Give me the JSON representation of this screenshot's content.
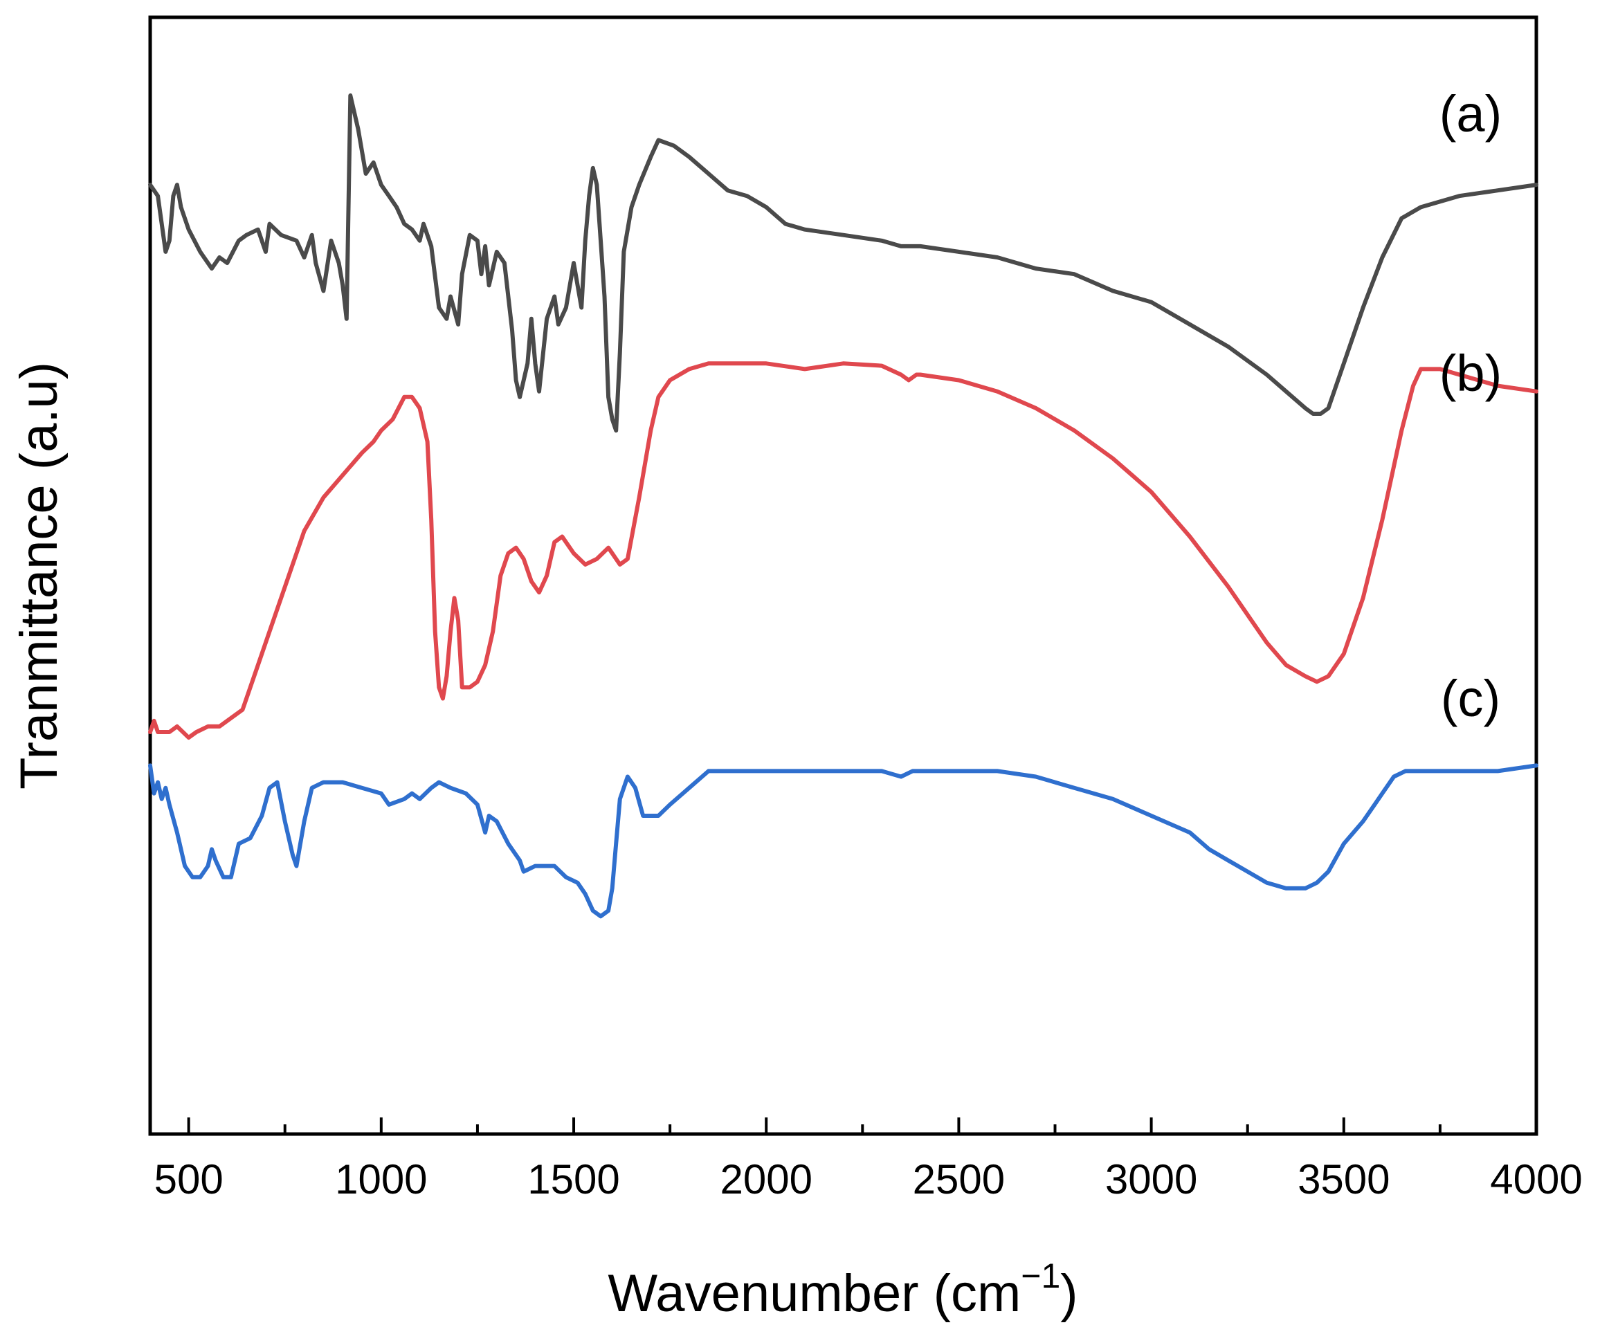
{
  "chart_data": {
    "type": "line",
    "title": "",
    "xlabel": "Wavenumber (cm",
    "xlabel_superscript": "−1",
    "xlabel_close": ")",
    "ylabel": "Tranmittance (a.u)",
    "xlim": [
      400,
      4000
    ],
    "ylim": [
      0,
      100
    ],
    "xticks": [
      500,
      1000,
      1500,
      2000,
      2500,
      3000,
      3500,
      4000
    ],
    "minor_tick_step": 250,
    "yticks_visible": false,
    "grid": false,
    "legend": "inline labels at right",
    "series": [
      {
        "name": "(a)",
        "color": "#4a4a4a",
        "points": [
          [
            400,
            85
          ],
          [
            420,
            84
          ],
          [
            440,
            79
          ],
          [
            450,
            80
          ],
          [
            460,
            84
          ],
          [
            470,
            85
          ],
          [
            480,
            83
          ],
          [
            500,
            81
          ],
          [
            530,
            79
          ],
          [
            560,
            77.5
          ],
          [
            580,
            78.5
          ],
          [
            600,
            78
          ],
          [
            630,
            80
          ],
          [
            650,
            80.5
          ],
          [
            680,
            81
          ],
          [
            700,
            79
          ],
          [
            710,
            81.5
          ],
          [
            740,
            80.5
          ],
          [
            780,
            80
          ],
          [
            800,
            78.5
          ],
          [
            820,
            80.5
          ],
          [
            830,
            78
          ],
          [
            850,
            75.5
          ],
          [
            870,
            80
          ],
          [
            890,
            78
          ],
          [
            900,
            76
          ],
          [
            910,
            73
          ],
          [
            920,
            93
          ],
          [
            940,
            90
          ],
          [
            960,
            86
          ],
          [
            980,
            87
          ],
          [
            1000,
            85
          ],
          [
            1020,
            84
          ],
          [
            1040,
            83
          ],
          [
            1060,
            81.5
          ],
          [
            1080,
            81
          ],
          [
            1100,
            80
          ],
          [
            1110,
            81.5
          ],
          [
            1130,
            79.5
          ],
          [
            1150,
            74
          ],
          [
            1170,
            73
          ],
          [
            1180,
            75
          ],
          [
            1200,
            72.5
          ],
          [
            1210,
            77
          ],
          [
            1230,
            80.5
          ],
          [
            1250,
            80
          ],
          [
            1260,
            77
          ],
          [
            1270,
            79.5
          ],
          [
            1280,
            76
          ],
          [
            1300,
            79
          ],
          [
            1320,
            78
          ],
          [
            1340,
            72
          ],
          [
            1350,
            67.5
          ],
          [
            1360,
            66
          ],
          [
            1380,
            69
          ],
          [
            1390,
            73
          ],
          [
            1400,
            69
          ],
          [
            1410,
            66.5
          ],
          [
            1430,
            73
          ],
          [
            1450,
            75
          ],
          [
            1460,
            72.5
          ],
          [
            1480,
            74
          ],
          [
            1500,
            78
          ],
          [
            1520,
            74
          ],
          [
            1530,
            80
          ],
          [
            1540,
            84
          ],
          [
            1550,
            86.5
          ],
          [
            1560,
            85
          ],
          [
            1570,
            80
          ],
          [
            1580,
            75
          ],
          [
            1590,
            66
          ],
          [
            1600,
            64
          ],
          [
            1610,
            63
          ],
          [
            1620,
            70
          ],
          [
            1630,
            79
          ],
          [
            1650,
            83
          ],
          [
            1670,
            85
          ],
          [
            1700,
            87.5
          ],
          [
            1720,
            89
          ],
          [
            1760,
            88.5
          ],
          [
            1800,
            87.5
          ],
          [
            1850,
            86
          ],
          [
            1900,
            84.5
          ],
          [
            1950,
            84
          ],
          [
            2000,
            83
          ],
          [
            2050,
            81.5
          ],
          [
            2100,
            81
          ],
          [
            2200,
            80.5
          ],
          [
            2300,
            80
          ],
          [
            2350,
            79.5
          ],
          [
            2400,
            79.5
          ],
          [
            2500,
            79
          ],
          [
            2600,
            78.5
          ],
          [
            2700,
            77.5
          ],
          [
            2800,
            77
          ],
          [
            2900,
            75.5
          ],
          [
            3000,
            74.5
          ],
          [
            3100,
            72.5
          ],
          [
            3200,
            70.5
          ],
          [
            3300,
            68
          ],
          [
            3350,
            66.5
          ],
          [
            3400,
            65
          ],
          [
            3420,
            64.5
          ],
          [
            3440,
            64.5
          ],
          [
            3460,
            65
          ],
          [
            3500,
            69
          ],
          [
            3550,
            74
          ],
          [
            3600,
            78.5
          ],
          [
            3650,
            82
          ],
          [
            3700,
            83
          ],
          [
            3800,
            84
          ],
          [
            3900,
            84.5
          ],
          [
            4000,
            85
          ]
        ]
      },
      {
        "name": "(b)",
        "color": "#e0484e",
        "points": [
          [
            400,
            36
          ],
          [
            410,
            37
          ],
          [
            420,
            36
          ],
          [
            450,
            36
          ],
          [
            470,
            36.5
          ],
          [
            500,
            35.5
          ],
          [
            520,
            36
          ],
          [
            550,
            36.5
          ],
          [
            580,
            36.5
          ],
          [
            600,
            37
          ],
          [
            640,
            38
          ],
          [
            680,
            42
          ],
          [
            720,
            46
          ],
          [
            760,
            50
          ],
          [
            800,
            54
          ],
          [
            850,
            57
          ],
          [
            900,
            59
          ],
          [
            950,
            61
          ],
          [
            980,
            62
          ],
          [
            1000,
            63
          ],
          [
            1030,
            64
          ],
          [
            1060,
            66
          ],
          [
            1080,
            66
          ],
          [
            1100,
            65
          ],
          [
            1120,
            62
          ],
          [
            1130,
            55
          ],
          [
            1140,
            45
          ],
          [
            1150,
            40
          ],
          [
            1160,
            39
          ],
          [
            1170,
            41
          ],
          [
            1180,
            45
          ],
          [
            1190,
            48
          ],
          [
            1200,
            46
          ],
          [
            1210,
            40
          ],
          [
            1230,
            40
          ],
          [
            1250,
            40.5
          ],
          [
            1270,
            42
          ],
          [
            1290,
            45
          ],
          [
            1310,
            50
          ],
          [
            1330,
            52
          ],
          [
            1350,
            52.5
          ],
          [
            1370,
            51.5
          ],
          [
            1390,
            49.5
          ],
          [
            1410,
            48.5
          ],
          [
            1430,
            50
          ],
          [
            1450,
            53
          ],
          [
            1470,
            53.5
          ],
          [
            1500,
            52
          ],
          [
            1530,
            51
          ],
          [
            1560,
            51.5
          ],
          [
            1590,
            52.5
          ],
          [
            1620,
            51
          ],
          [
            1640,
            51.5
          ],
          [
            1670,
            57
          ],
          [
            1700,
            63
          ],
          [
            1720,
            66
          ],
          [
            1750,
            67.5
          ],
          [
            1800,
            68.5
          ],
          [
            1850,
            69
          ],
          [
            1900,
            69
          ],
          [
            2000,
            69
          ],
          [
            2100,
            68.5
          ],
          [
            2200,
            69
          ],
          [
            2300,
            68.8
          ],
          [
            2350,
            68
          ],
          [
            2370,
            67.5
          ],
          [
            2390,
            68
          ],
          [
            2400,
            68
          ],
          [
            2500,
            67.5
          ],
          [
            2600,
            66.5
          ],
          [
            2700,
            65
          ],
          [
            2800,
            63
          ],
          [
            2900,
            60.5
          ],
          [
            2950,
            59
          ],
          [
            3000,
            57.5
          ],
          [
            3100,
            53.5
          ],
          [
            3200,
            49
          ],
          [
            3250,
            46.5
          ],
          [
            3300,
            44
          ],
          [
            3350,
            42
          ],
          [
            3400,
            41
          ],
          [
            3430,
            40.5
          ],
          [
            3460,
            41
          ],
          [
            3500,
            43
          ],
          [
            3550,
            48
          ],
          [
            3600,
            55
          ],
          [
            3650,
            63
          ],
          [
            3680,
            67
          ],
          [
            3700,
            68.5
          ],
          [
            3750,
            68.5
          ],
          [
            3800,
            68
          ],
          [
            3900,
            67
          ],
          [
            4000,
            66.5
          ]
        ]
      },
      {
        "name": "(c)",
        "color": "#2f6fce",
        "points": [
          [
            400,
            33
          ],
          [
            410,
            30.5
          ],
          [
            420,
            31.5
          ],
          [
            430,
            30
          ],
          [
            440,
            31
          ],
          [
            450,
            29.5
          ],
          [
            470,
            27
          ],
          [
            490,
            24
          ],
          [
            510,
            23
          ],
          [
            530,
            23
          ],
          [
            550,
            24
          ],
          [
            560,
            25.5
          ],
          [
            570,
            24.5
          ],
          [
            590,
            23
          ],
          [
            610,
            23
          ],
          [
            630,
            26
          ],
          [
            660,
            26.5
          ],
          [
            690,
            28.5
          ],
          [
            710,
            31
          ],
          [
            730,
            31.5
          ],
          [
            750,
            28
          ],
          [
            770,
            25
          ],
          [
            780,
            24
          ],
          [
            800,
            28
          ],
          [
            820,
            31
          ],
          [
            850,
            31.5
          ],
          [
            900,
            31.5
          ],
          [
            950,
            31
          ],
          [
            1000,
            30.5
          ],
          [
            1020,
            29.5
          ],
          [
            1060,
            30
          ],
          [
            1080,
            30.5
          ],
          [
            1100,
            30
          ],
          [
            1130,
            31
          ],
          [
            1150,
            31.5
          ],
          [
            1180,
            31
          ],
          [
            1220,
            30.5
          ],
          [
            1250,
            29.5
          ],
          [
            1270,
            27
          ],
          [
            1280,
            28.5
          ],
          [
            1300,
            28
          ],
          [
            1330,
            26
          ],
          [
            1360,
            24.5
          ],
          [
            1370,
            23.5
          ],
          [
            1400,
            24
          ],
          [
            1450,
            24
          ],
          [
            1480,
            23
          ],
          [
            1510,
            22.5
          ],
          [
            1530,
            21.5
          ],
          [
            1550,
            20
          ],
          [
            1570,
            19.5
          ],
          [
            1590,
            20
          ],
          [
            1600,
            22
          ],
          [
            1610,
            26
          ],
          [
            1620,
            30
          ],
          [
            1640,
            32
          ],
          [
            1660,
            31
          ],
          [
            1680,
            28.5
          ],
          [
            1720,
            28.5
          ],
          [
            1750,
            29.5
          ],
          [
            1800,
            31
          ],
          [
            1850,
            32.5
          ],
          [
            1900,
            32.5
          ],
          [
            2000,
            32.5
          ],
          [
            2100,
            32.5
          ],
          [
            2200,
            32.5
          ],
          [
            2300,
            32.5
          ],
          [
            2350,
            32
          ],
          [
            2380,
            32.5
          ],
          [
            2400,
            32.5
          ],
          [
            2500,
            32.5
          ],
          [
            2600,
            32.5
          ],
          [
            2700,
            32
          ],
          [
            2800,
            31
          ],
          [
            2900,
            30
          ],
          [
            3000,
            28.5
          ],
          [
            3100,
            27
          ],
          [
            3150,
            25.5
          ],
          [
            3200,
            24.5
          ],
          [
            3250,
            23.5
          ],
          [
            3300,
            22.5
          ],
          [
            3350,
            22
          ],
          [
            3400,
            22
          ],
          [
            3430,
            22.5
          ],
          [
            3460,
            23.5
          ],
          [
            3500,
            26
          ],
          [
            3550,
            28
          ],
          [
            3580,
            29.5
          ],
          [
            3600,
            30.5
          ],
          [
            3630,
            32
          ],
          [
            3660,
            32.5
          ],
          [
            3700,
            32.5
          ],
          [
            3800,
            32.5
          ],
          [
            3900,
            32.5
          ],
          [
            4000,
            33
          ]
        ]
      }
    ]
  }
}
